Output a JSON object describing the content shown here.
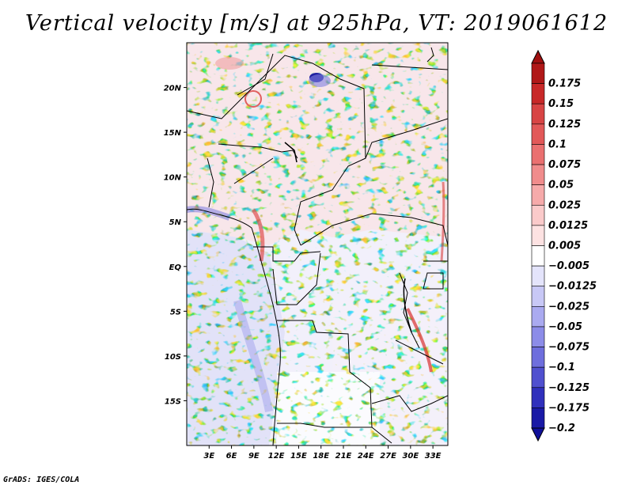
{
  "title": "Vertical velocity [m/s] at 925hPa, VT: 2019061612",
  "credit": "GrADS: IGES/COLA",
  "map": {
    "lon_range": [
      0,
      35
    ],
    "lat_range": [
      -20,
      25
    ],
    "lat_ticks": [
      {
        "value": 20,
        "label": "20N"
      },
      {
        "value": 15,
        "label": "15N"
      },
      {
        "value": 10,
        "label": "10N"
      },
      {
        "value": 5,
        "label": "5N"
      },
      {
        "value": 0,
        "label": "EQ"
      },
      {
        "value": -5,
        "label": "5S"
      },
      {
        "value": -10,
        "label": "10S"
      },
      {
        "value": -15,
        "label": "15S"
      }
    ],
    "lon_ticks": [
      {
        "value": 3,
        "label": "3E"
      },
      {
        "value": 6,
        "label": "6E"
      },
      {
        "value": 9,
        "label": "9E"
      },
      {
        "value": 12,
        "label": "12E"
      },
      {
        "value": 15,
        "label": "15E"
      },
      {
        "value": 18,
        "label": "18E"
      },
      {
        "value": 21,
        "label": "21E"
      },
      {
        "value": 24,
        "label": "24E"
      },
      {
        "value": 27,
        "label": "27E"
      },
      {
        "value": 30,
        "label": "30E"
      },
      {
        "value": 33,
        "label": "33E"
      }
    ]
  },
  "colorbar": {
    "levels": [
      {
        "label": "0.175",
        "color": "#b01818"
      },
      {
        "label": "0.15",
        "color": "#c82828"
      },
      {
        "label": "0.125",
        "color": "#d84444"
      },
      {
        "label": "0.1",
        "color": "#e25858"
      },
      {
        "label": "0.075",
        "color": "#ea7070"
      },
      {
        "label": "0.05",
        "color": "#f08c8c"
      },
      {
        "label": "0.025",
        "color": "#f6aaaa"
      },
      {
        "label": "0.0125",
        "color": "#facaca"
      },
      {
        "label": "0.005",
        "color": "#fde2e2"
      },
      {
        "label": "−0.005",
        "color": "#ffffff"
      },
      {
        "label": "−0.0125",
        "color": "#e4e4fb"
      },
      {
        "label": "−0.025",
        "color": "#c8c8f6"
      },
      {
        "label": "−0.05",
        "color": "#aaaaf0"
      },
      {
        "label": "−0.075",
        "color": "#8c8ce8"
      },
      {
        "label": "−0.1",
        "color": "#6e6edd"
      },
      {
        "label": "−0.125",
        "color": "#5050cf"
      },
      {
        "label": "−0.175",
        "color": "#3030bc"
      },
      {
        "label": "−0.2",
        "color": "#1a1aa6"
      }
    ],
    "top_color": "#a01010",
    "bottom_color": "#10109a"
  }
}
